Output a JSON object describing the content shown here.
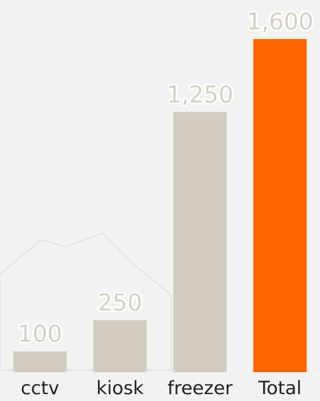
{
  "chart_data": {
    "type": "bar",
    "categories": [
      "cctv",
      "kiosk",
      "freezer",
      "Total"
    ],
    "values": [
      100,
      250,
      1250,
      1600
    ],
    "value_labels": [
      "100",
      "250",
      "1,250",
      "1,600"
    ],
    "colors": [
      "#d3cdc1",
      "#d3cdc1",
      "#d3cdc1",
      "#ff6600"
    ]
  }
}
